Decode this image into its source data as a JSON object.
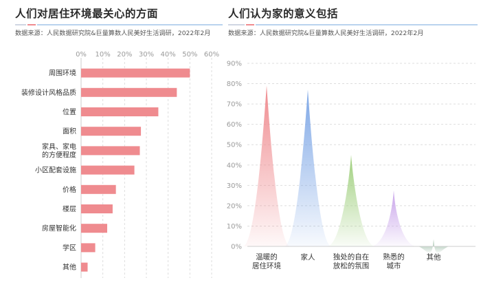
{
  "charts": {
    "left": {
      "title": "人们对居住环境最关心的方面",
      "source": "数据来源：人民数据研究院&巨量算数人民美好生活调研，2022年2月"
    },
    "right": {
      "title": "人们认为家的意义包括",
      "source": "数据来源：人民数据研究院&巨量算数人民美好生活调研，2022年2月"
    }
  },
  "colors": {
    "bar": "#ef8b8f",
    "accent_red": "#ef8b8f",
    "accent_blue": "#9cc3e8",
    "peak_red": "#ef8b8f",
    "peak_blue": "#7ea7e6",
    "peak_green": "#9fcf7d",
    "peak_purple": "#c8a3ea",
    "peak_gray": "#8fb39b"
  },
  "chart_data": [
    {
      "type": "bar",
      "orientation": "horizontal",
      "categories": [
        [
          "周围环境"
        ],
        [
          "装修设计风格品质"
        ],
        [
          "位置"
        ],
        [
          "面积"
        ],
        [
          "家具、家电",
          "的方便程度"
        ],
        [
          "小区配套设施"
        ],
        [
          "价格"
        ],
        [
          "楼层"
        ],
        [
          "房屋智能化"
        ],
        [
          "学区"
        ],
        [
          "其他"
        ]
      ],
      "values": [
        50,
        44,
        35.5,
        27.5,
        27,
        24.5,
        16,
        14.5,
        12,
        6.5,
        3
      ],
      "xlim": [
        0,
        60
      ],
      "xticks": [
        "0%",
        "10%",
        "20%",
        "30%",
        "40%",
        "50%",
        "60%"
      ],
      "grid": true
    },
    {
      "type": "area",
      "categories": [
        [
          "温暖的",
          "居住环境"
        ],
        [
          "家人"
        ],
        [
          "独处的自在",
          "放松的氛围"
        ],
        [
          "熟悉的",
          "城市"
        ],
        [
          "其他"
        ]
      ],
      "values": [
        79,
        77,
        45,
        27.5,
        3.5
      ],
      "ylim": [
        0,
        90
      ],
      "yticks": [
        "0%",
        "10%",
        "20%",
        "30%",
        "40%",
        "50%",
        "60%",
        "70%",
        "80%",
        "90%"
      ],
      "grid": true
    }
  ]
}
